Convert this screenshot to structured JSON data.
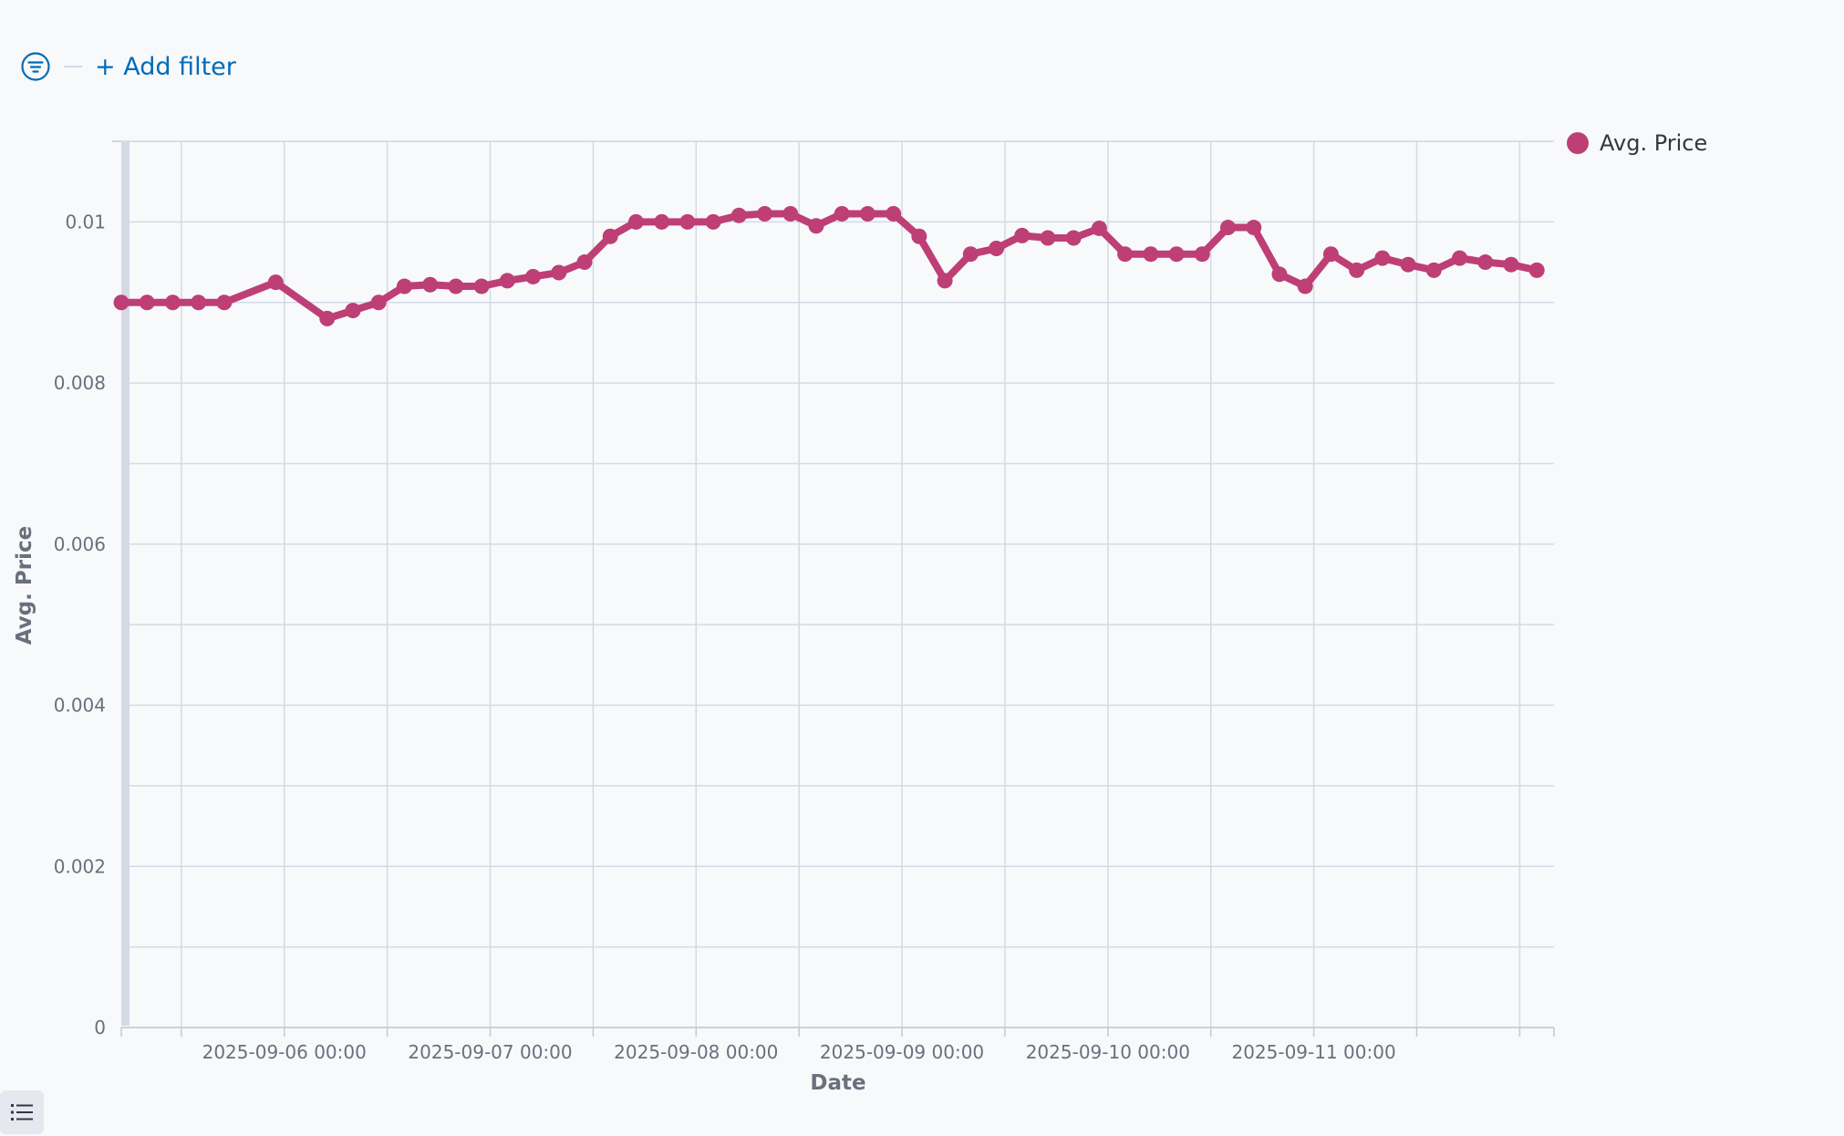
{
  "filter_bar": {
    "add_filter_label": "+ Add filter",
    "icon": "filter-icon"
  },
  "legend": {
    "label": "Avg. Price",
    "color": "#bd3f75"
  },
  "list_toggle": {
    "icon": "list-icon"
  },
  "chart_data": {
    "type": "line",
    "xlabel": "Date",
    "ylabel": "Avg. Price",
    "x_tick_labels": [
      "2025-09-06 00:00",
      "2025-09-07 00:00",
      "2025-09-08 00:00",
      "2025-09-09 00:00",
      "2025-09-10 00:00",
      "2025-09-11 00:00"
    ],
    "y_tick_labels": [
      "0",
      "0.002",
      "0.004",
      "0.006",
      "0.008",
      "0.01"
    ],
    "ylim": [
      0,
      0.011
    ],
    "xlim": [
      "2025-09-05 05:00",
      "2025-09-12 04:00"
    ],
    "grid": true,
    "legend_position": "top-right",
    "series": [
      {
        "name": "Avg. Price",
        "color": "#bd3f75",
        "x": [
          "2025-09-05 05:00",
          "2025-09-05 08:00",
          "2025-09-05 11:00",
          "2025-09-05 14:00",
          "2025-09-05 17:00",
          "2025-09-05 23:00",
          "2025-09-06 05:00",
          "2025-09-06 08:00",
          "2025-09-06 11:00",
          "2025-09-06 14:00",
          "2025-09-06 17:00",
          "2025-09-06 20:00",
          "2025-09-06 23:00",
          "2025-09-07 02:00",
          "2025-09-07 05:00",
          "2025-09-07 08:00",
          "2025-09-07 11:00",
          "2025-09-07 14:00",
          "2025-09-07 17:00",
          "2025-09-07 20:00",
          "2025-09-07 23:00",
          "2025-09-08 02:00",
          "2025-09-08 05:00",
          "2025-09-08 08:00",
          "2025-09-08 11:00",
          "2025-09-08 14:00",
          "2025-09-08 17:00",
          "2025-09-08 20:00",
          "2025-09-08 23:00",
          "2025-09-09 02:00",
          "2025-09-09 05:00",
          "2025-09-09 08:00",
          "2025-09-09 11:00",
          "2025-09-09 14:00",
          "2025-09-09 17:00",
          "2025-09-09 20:00",
          "2025-09-09 23:00",
          "2025-09-10 02:00",
          "2025-09-10 05:00",
          "2025-09-10 08:00",
          "2025-09-10 11:00",
          "2025-09-10 14:00",
          "2025-09-10 17:00",
          "2025-09-10 20:00",
          "2025-09-10 23:00",
          "2025-09-11 02:00",
          "2025-09-11 05:00",
          "2025-09-11 08:00",
          "2025-09-11 11:00",
          "2025-09-11 14:00",
          "2025-09-11 17:00",
          "2025-09-11 20:00",
          "2025-09-11 23:00",
          "2025-09-12 02:00"
        ],
        "values": [
          0.009,
          0.009,
          0.009,
          0.009,
          0.009,
          0.00925,
          0.0088,
          0.0089,
          0.009,
          0.0092,
          0.00922,
          0.0092,
          0.0092,
          0.00927,
          0.00932,
          0.00937,
          0.0095,
          0.00982,
          0.01,
          0.01,
          0.01,
          0.01,
          0.01008,
          0.0101,
          0.0101,
          0.00995,
          0.0101,
          0.0101,
          0.0101,
          0.00982,
          0.00927,
          0.0096,
          0.00967,
          0.00983,
          0.0098,
          0.0098,
          0.00992,
          0.0096,
          0.0096,
          0.0096,
          0.0096,
          0.00993,
          0.00993,
          0.00935,
          0.0092,
          0.0096,
          0.0094,
          0.00955,
          0.00947,
          0.0094,
          0.00955,
          0.0095,
          0.00947,
          0.0094
        ]
      }
    ]
  }
}
